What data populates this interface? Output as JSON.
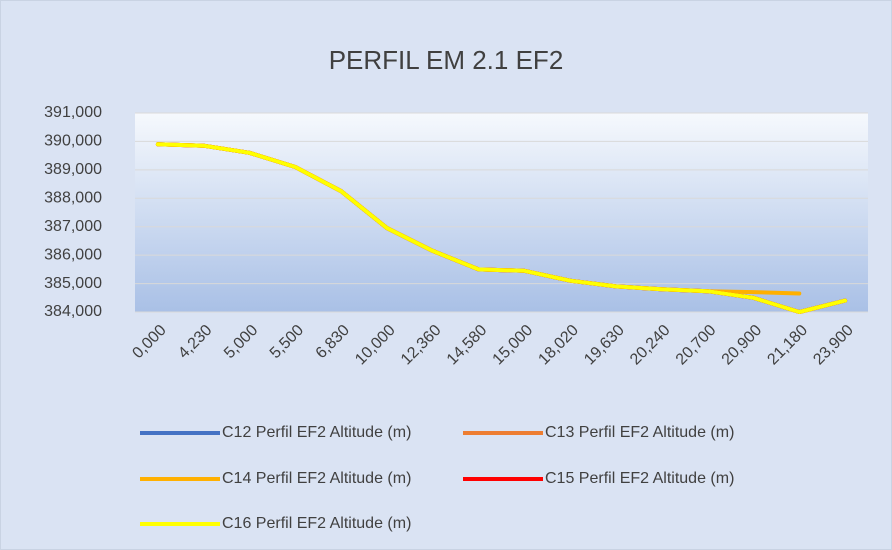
{
  "chart_data": {
    "type": "line",
    "title": "PERFIL EM 2.1 EF2",
    "categories": [
      "0,000",
      "4,230",
      "5,000",
      "5,500",
      "6,830",
      "10,000",
      "12,360",
      "14,580",
      "15,000",
      "18,020",
      "19,630",
      "20,240",
      "20,700",
      "20,900",
      "21,180",
      "23,900"
    ],
    "series": [
      {
        "name": "C12 Perfil EF2 Altitude (m)",
        "color": "#4472c4",
        "values": [
          389.9,
          389.85,
          389.6,
          389.1,
          388.25,
          386.95,
          386.15,
          385.5,
          385.45,
          385.1,
          384.9,
          384.8,
          384.73,
          384.5,
          384.0,
          384.4
        ]
      },
      {
        "name": "C13 Perfil EF2 Altitude (m)",
        "color": "#ed7d31",
        "values": [
          389.9,
          389.85,
          389.6,
          389.1,
          388.25,
          386.95,
          386.15,
          385.5,
          385.45,
          385.1,
          384.9,
          384.8,
          384.73,
          384.5,
          384.0,
          384.4
        ]
      },
      {
        "name": "C14 Perfil EF2 Altitude (m)",
        "color": "#ffb000",
        "values": [
          389.9,
          389.85,
          389.6,
          389.1,
          388.25,
          386.95,
          386.15,
          385.5,
          385.45,
          385.1,
          384.9,
          384.8,
          384.73,
          384.7,
          384.65,
          null
        ]
      },
      {
        "name": "C15 Perfil EF2 Altitude (m)",
        "color": "#ff0000",
        "values": [
          389.9,
          389.85,
          389.6,
          389.1,
          388.25,
          386.95,
          386.15,
          385.5,
          385.45,
          385.1,
          384.9,
          384.8,
          384.73,
          384.5,
          384.0,
          384.4
        ]
      },
      {
        "name": "C16 Perfil EF2 Altitude (m)",
        "color": "#ffff00",
        "values": [
          389.9,
          389.85,
          389.6,
          389.1,
          388.25,
          386.95,
          386.15,
          385.5,
          385.45,
          385.1,
          384.9,
          384.8,
          384.73,
          384.5,
          384.0,
          384.4
        ]
      }
    ],
    "ylim": [
      384,
      391
    ],
    "yticks": [
      {
        "value": 384,
        "label": "384,000"
      },
      {
        "value": 385,
        "label": "385,000"
      },
      {
        "value": 386,
        "label": "386,000"
      },
      {
        "value": 387,
        "label": "387,000"
      },
      {
        "value": 388,
        "label": "388,000"
      },
      {
        "value": 389,
        "label": "389,000"
      },
      {
        "value": 390,
        "label": "390,000"
      },
      {
        "value": 391,
        "label": "391,000"
      }
    ],
    "grid": true
  }
}
